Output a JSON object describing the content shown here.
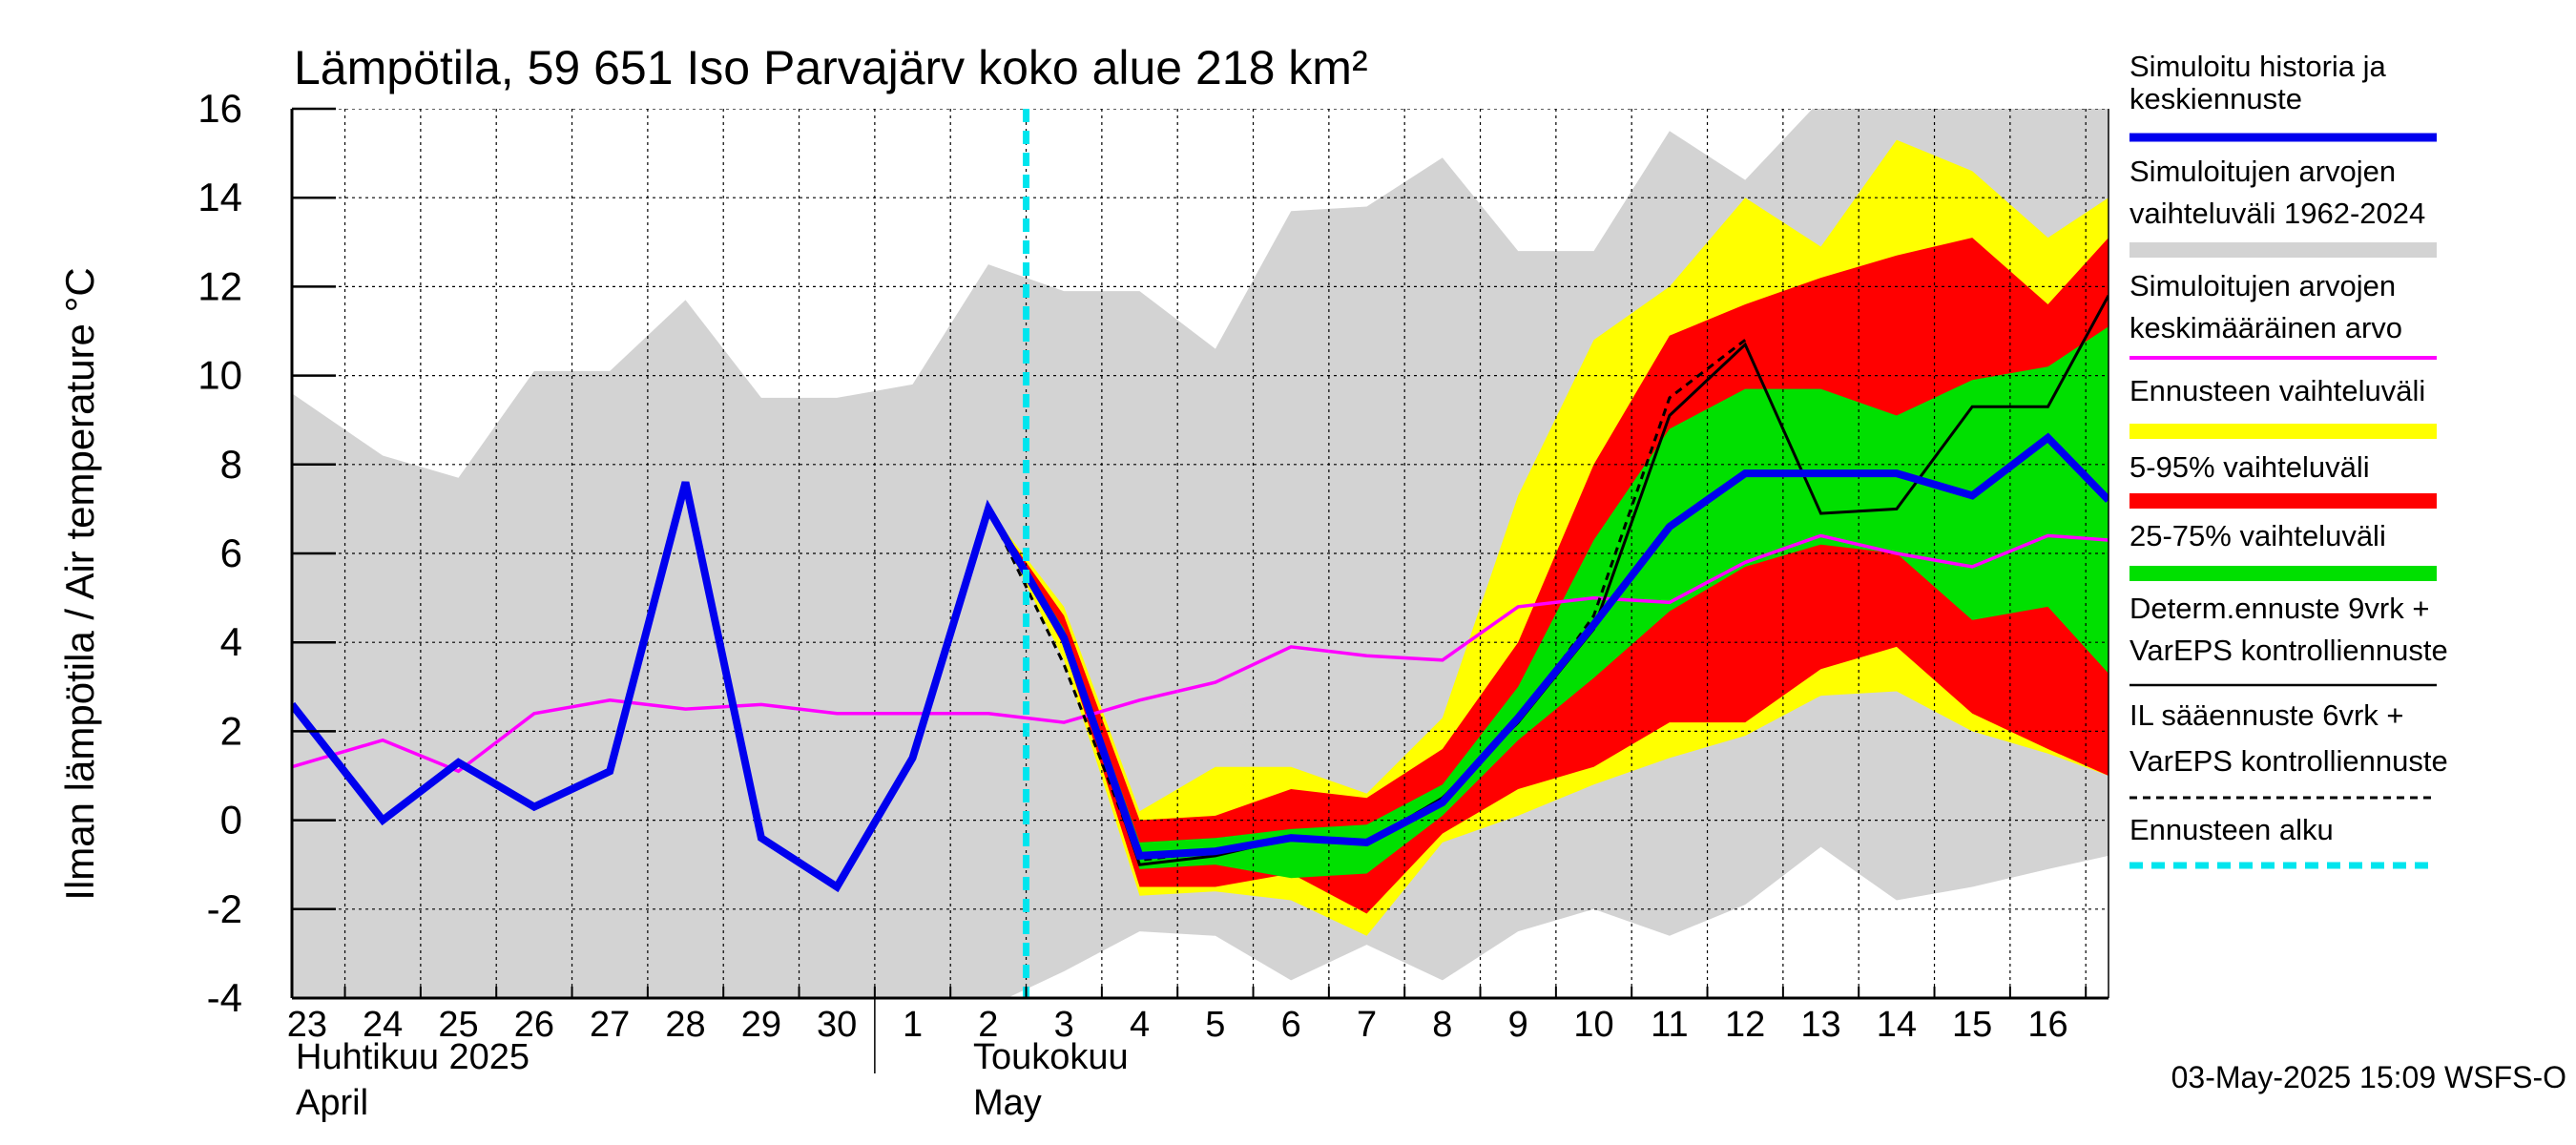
{
  "chart_data": {
    "type": "line",
    "title": "Lämpötila, 59 651 Iso Parvajärv koko alue 218 km²",
    "ylabel": "Ilman lämpötila / Air temperature   °C",
    "ylim": [
      -4,
      16
    ],
    "yticks": [
      16,
      14,
      12,
      10,
      8,
      6,
      4,
      2,
      0,
      -2,
      -4
    ],
    "xlim": [
      -0.2,
      23.8
    ],
    "days": [
      "23",
      "24",
      "25",
      "26",
      "27",
      "28",
      "29",
      "30",
      "1",
      "2",
      "3",
      "4",
      "5",
      "6",
      "7",
      "8",
      "9",
      "10",
      "11",
      "12",
      "13",
      "14",
      "15",
      "16"
    ],
    "month_labels": {
      "april_fi": "Huhtikuu  2025",
      "april_en": "April",
      "may_fi": "Toukokuu",
      "may_en": "May"
    },
    "forecast_start": 10,
    "timestamp": "03-May-2025 15:09 WSFS-O",
    "colors": {
      "history_range": "#d3d3d3",
      "full_range": "#ffff00",
      "p5_95": "#ff0000",
      "p25_75": "#00e000",
      "simulated": "#0000ee",
      "mean": "#ff00ff",
      "deterministic": "#000000",
      "forecast_start": "#00e5ee"
    },
    "legend": [
      {
        "label": "Simuloitu historia ja",
        "label2": "keskiennuste",
        "style": "thick-blue"
      },
      {
        "label": "Simuloitujen arvojen",
        "label2": "vaihteluväli 1962-2024",
        "style": "gray"
      },
      {
        "label": "Simuloitujen arvojen",
        "label2": "keskimääräinen arvo",
        "style": "magenta"
      },
      {
        "label": "Ennusteen vaihteluväli",
        "label2": "",
        "style": "yellow"
      },
      {
        "label": "5-95% vaihteluväli",
        "label2": "",
        "style": "red"
      },
      {
        "label": "25-75% vaihteluväli",
        "label2": "",
        "style": "green"
      },
      {
        "label": "Determ.ennuste 9vrk +",
        "label2": "VarEPS kontrolliennuste",
        "style": "black"
      },
      {
        "label": "IL sääennuste 6vrk  +",
        "label2": "  VarEPS kontrolliennuste",
        "style": "dashed"
      },
      {
        "label": "Ennusteen alku",
        "label2": "",
        "style": "cyan-dashed"
      }
    ],
    "history_range": {
      "x": [
        -0.2,
        1,
        2,
        3,
        4,
        5,
        6,
        7,
        8,
        9,
        10,
        11,
        12,
        13,
        14,
        15,
        16,
        17,
        18,
        19,
        20,
        21,
        22,
        23,
        23.8
      ],
      "upper": [
        9.6,
        8.2,
        7.7,
        10.1,
        10.1,
        11.7,
        9.5,
        9.5,
        9.8,
        12.5,
        11.9,
        11.9,
        10.6,
        13.7,
        13.8,
        14.9,
        12.8,
        12.8,
        15.5,
        14.4,
        16.2,
        16.2,
        16.2,
        16.2,
        16.2
      ],
      "lower": [
        -4.2,
        -4.2,
        -4.2,
        -4.2,
        -4.2,
        -4.2,
        -4.2,
        -4.2,
        -4.2,
        -4.2,
        -3.4,
        -2.5,
        -2.6,
        -3.6,
        -2.8,
        -3.6,
        -2.5,
        -2.0,
        -2.6,
        -1.9,
        -0.6,
        -1.8,
        -1.5,
        -1.1,
        -0.8
      ]
    },
    "ensemble_x": [
      9,
      10,
      11,
      12,
      13,
      14,
      15,
      16,
      17,
      18,
      19,
      20,
      21,
      22,
      23,
      23.8
    ],
    "full_range_upper": [
      7.0,
      4.8,
      0.2,
      1.2,
      1.2,
      0.6,
      2.3,
      7.3,
      10.8,
      12.0,
      14.0,
      12.9,
      15.3,
      14.6,
      13.1,
      14.0
    ],
    "full_range_lower": [
      7.0,
      3.6,
      -1.7,
      -1.6,
      -1.8,
      -2.6,
      -0.5,
      0.1,
      0.8,
      1.4,
      1.9,
      2.8,
      2.9,
      2.0,
      1.5,
      1.0
    ],
    "p5_95_upper": [
      7.0,
      4.6,
      0.0,
      0.1,
      0.7,
      0.5,
      1.6,
      4.0,
      8.0,
      10.9,
      11.6,
      12.2,
      12.7,
      13.1,
      11.6,
      13.1
    ],
    "p5_95_lower": [
      7.0,
      3.9,
      -1.5,
      -1.5,
      -1.2,
      -2.1,
      -0.3,
      0.7,
      1.2,
      2.2,
      2.2,
      3.4,
      3.9,
      2.4,
      1.6,
      1.0
    ],
    "p25_75_upper": [
      7.0,
      4.3,
      -0.5,
      -0.4,
      -0.2,
      -0.1,
      0.8,
      3.0,
      6.3,
      8.8,
      9.7,
      9.7,
      9.1,
      9.9,
      10.2,
      11.1
    ],
    "p25_75_lower": [
      7.0,
      4.0,
      -1.1,
      -1.0,
      -1.3,
      -1.2,
      0.1,
      1.8,
      3.2,
      4.7,
      5.7,
      6.2,
      6.0,
      4.5,
      4.8,
      3.3
    ],
    "series": [
      {
        "name": "Simuloitu historia ja keskiennuste",
        "x": [
          -0.2,
          1,
          2,
          3,
          4,
          5,
          6,
          7,
          8,
          9,
          10,
          11,
          12,
          13,
          14,
          15,
          16,
          17,
          18,
          19,
          20,
          21,
          22,
          23,
          23.8
        ],
        "values": [
          2.6,
          0.0,
          1.3,
          0.3,
          1.1,
          7.6,
          -0.4,
          -1.5,
          1.4,
          7.0,
          4.1,
          -0.8,
          -0.7,
          -0.4,
          -0.5,
          0.4,
          2.3,
          4.4,
          6.6,
          7.8,
          7.8,
          7.8,
          7.3,
          8.6,
          7.2
        ]
      },
      {
        "name": "Simuloitujen arvojen keskimääräinen arvo",
        "x": [
          -0.2,
          1,
          2,
          3,
          4,
          5,
          6,
          7,
          8,
          9,
          10,
          11,
          12,
          13,
          14,
          15,
          16,
          17,
          18,
          19,
          20,
          21,
          22,
          23,
          23.8
        ],
        "values": [
          1.2,
          1.8,
          1.1,
          2.4,
          2.7,
          2.5,
          2.6,
          2.4,
          2.4,
          2.4,
          2.2,
          2.7,
          3.1,
          3.9,
          3.7,
          3.6,
          4.8,
          5.0,
          4.9,
          5.8,
          6.4,
          6.0,
          5.7,
          6.4,
          6.3
        ]
      },
      {
        "name": "Determ.ennuste 9vrk + VarEPS kontrolliennuste",
        "x": [
          9,
          10,
          11,
          12,
          13,
          14,
          15,
          16,
          17,
          18,
          19,
          20,
          21,
          22,
          23,
          23.8
        ],
        "values": [
          7.0,
          4.0,
          -1.0,
          -0.8,
          -0.4,
          -0.5,
          0.5,
          2.2,
          4.3,
          9.1,
          10.7,
          6.9,
          7.0,
          9.3,
          9.3,
          11.8
        ]
      },
      {
        "name": "IL sääennuste 6vrk + VarEPS kontrolliennuste",
        "x": [
          9,
          10,
          11,
          12,
          13,
          14,
          15,
          16,
          17,
          18,
          19
        ],
        "values": [
          7.0,
          3.5,
          -0.9,
          -0.7,
          -0.4,
          -0.5,
          0.5,
          2.2,
          4.6,
          9.5,
          10.8
        ]
      }
    ]
  }
}
